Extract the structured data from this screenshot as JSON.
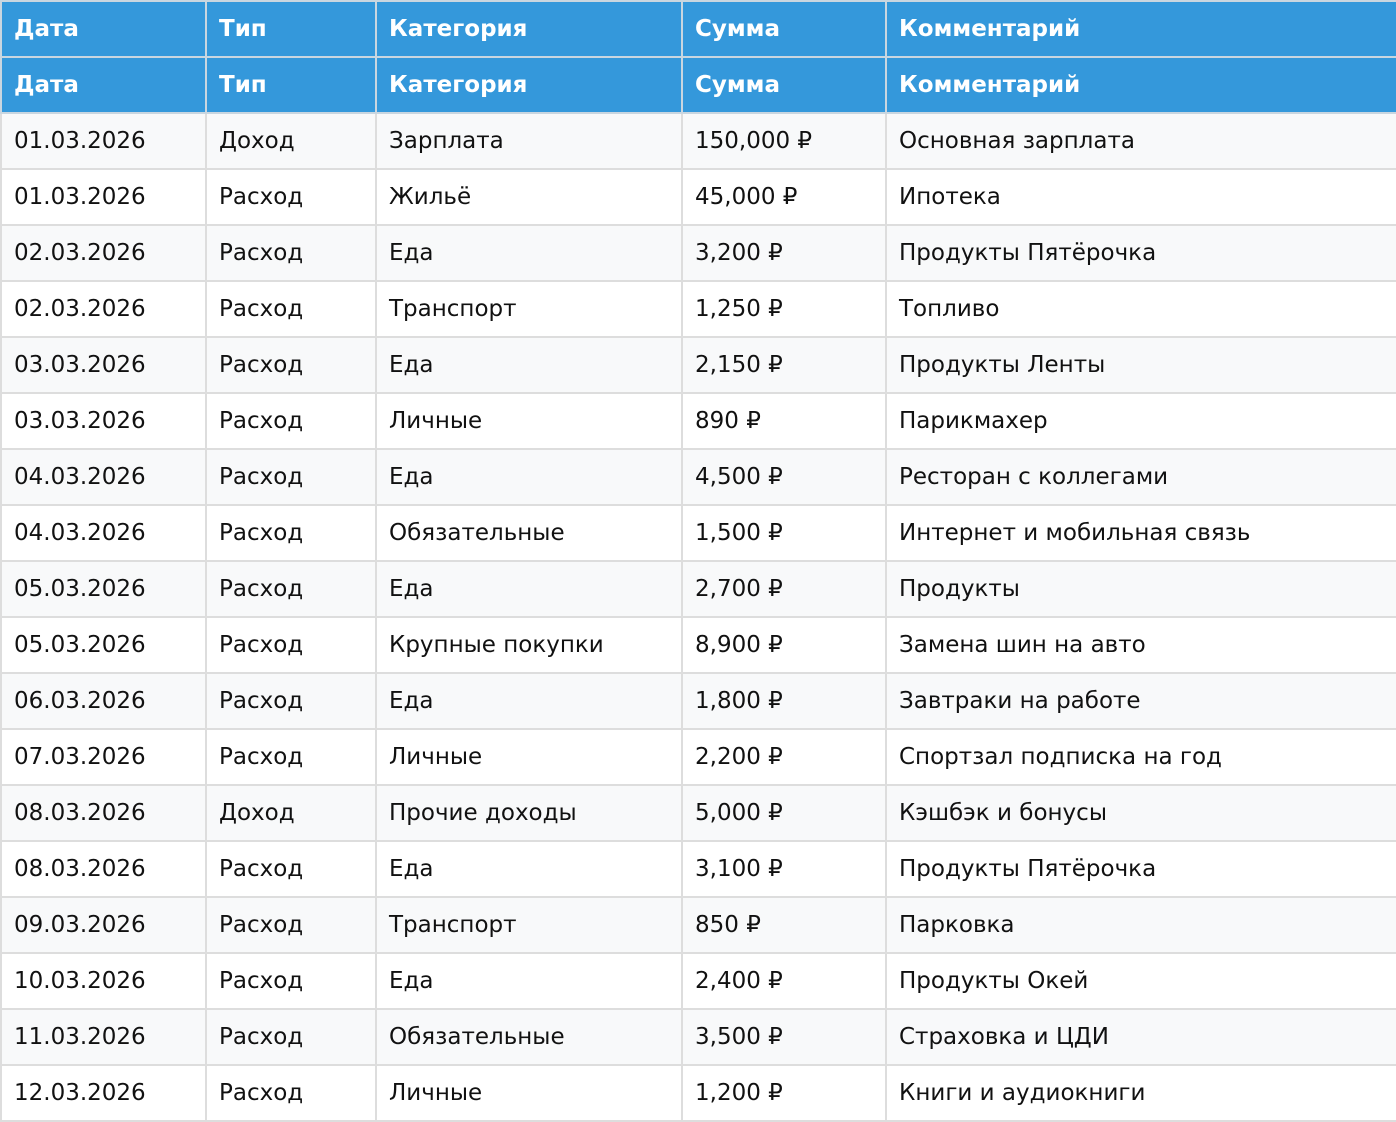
{
  "colors": {
    "header_bg": "#3498db",
    "header_text": "#ffffff",
    "row_alt_bg": "#f8f9fa",
    "border": "#dddddd"
  },
  "headers": [
    "Дата",
    "Тип",
    "Категория",
    "Сумма",
    "Комментарий"
  ],
  "rows": [
    [
      "01.03.2026",
      "Доход",
      "Зарплата",
      "150,000 ₽",
      "Основная зарплата"
    ],
    [
      "01.03.2026",
      "Расход",
      "Жильё",
      "45,000 ₽",
      "Ипотека"
    ],
    [
      "02.03.2026",
      "Расход",
      "Еда",
      "3,200 ₽",
      "Продукты Пятёрочка"
    ],
    [
      "02.03.2026",
      "Расход",
      "Транспорт",
      "1,250 ₽",
      "Топливо"
    ],
    [
      "03.03.2026",
      "Расход",
      "Еда",
      "2,150 ₽",
      "Продукты Ленты"
    ],
    [
      "03.03.2026",
      "Расход",
      "Личные",
      "890 ₽",
      "Парикмахер"
    ],
    [
      "04.03.2026",
      "Расход",
      "Еда",
      "4,500 ₽",
      "Ресторан с коллегами"
    ],
    [
      "04.03.2026",
      "Расход",
      "Обязательные",
      "1,500 ₽",
      "Интернет и мобильная связь"
    ],
    [
      "05.03.2026",
      "Расход",
      "Еда",
      "2,700 ₽",
      "Продукты"
    ],
    [
      "05.03.2026",
      "Расход",
      "Крупные покупки",
      "8,900 ₽",
      "Замена шин на авто"
    ],
    [
      "06.03.2026",
      "Расход",
      "Еда",
      "1,800 ₽",
      "Завтраки на работе"
    ],
    [
      "07.03.2026",
      "Расход",
      "Личные",
      "2,200 ₽",
      "Спортзал подписка на год"
    ],
    [
      "08.03.2026",
      "Доход",
      "Прочие доходы",
      "5,000 ₽",
      "Кэшбэк и бонусы"
    ],
    [
      "08.03.2026",
      "Расход",
      "Еда",
      "3,100 ₽",
      "Продукты Пятёрочка"
    ],
    [
      "09.03.2026",
      "Расход",
      "Транспорт",
      "850 ₽",
      "Парковка"
    ],
    [
      "10.03.2026",
      "Расход",
      "Еда",
      "2,400 ₽",
      "Продукты Окей"
    ],
    [
      "11.03.2026",
      "Расход",
      "Обязательные",
      "3,500 ₽",
      "Страховка и ЦДИ"
    ],
    [
      "12.03.2026",
      "Расход",
      "Личные",
      "1,200 ₽",
      "Книги и аудиокниги"
    ]
  ]
}
